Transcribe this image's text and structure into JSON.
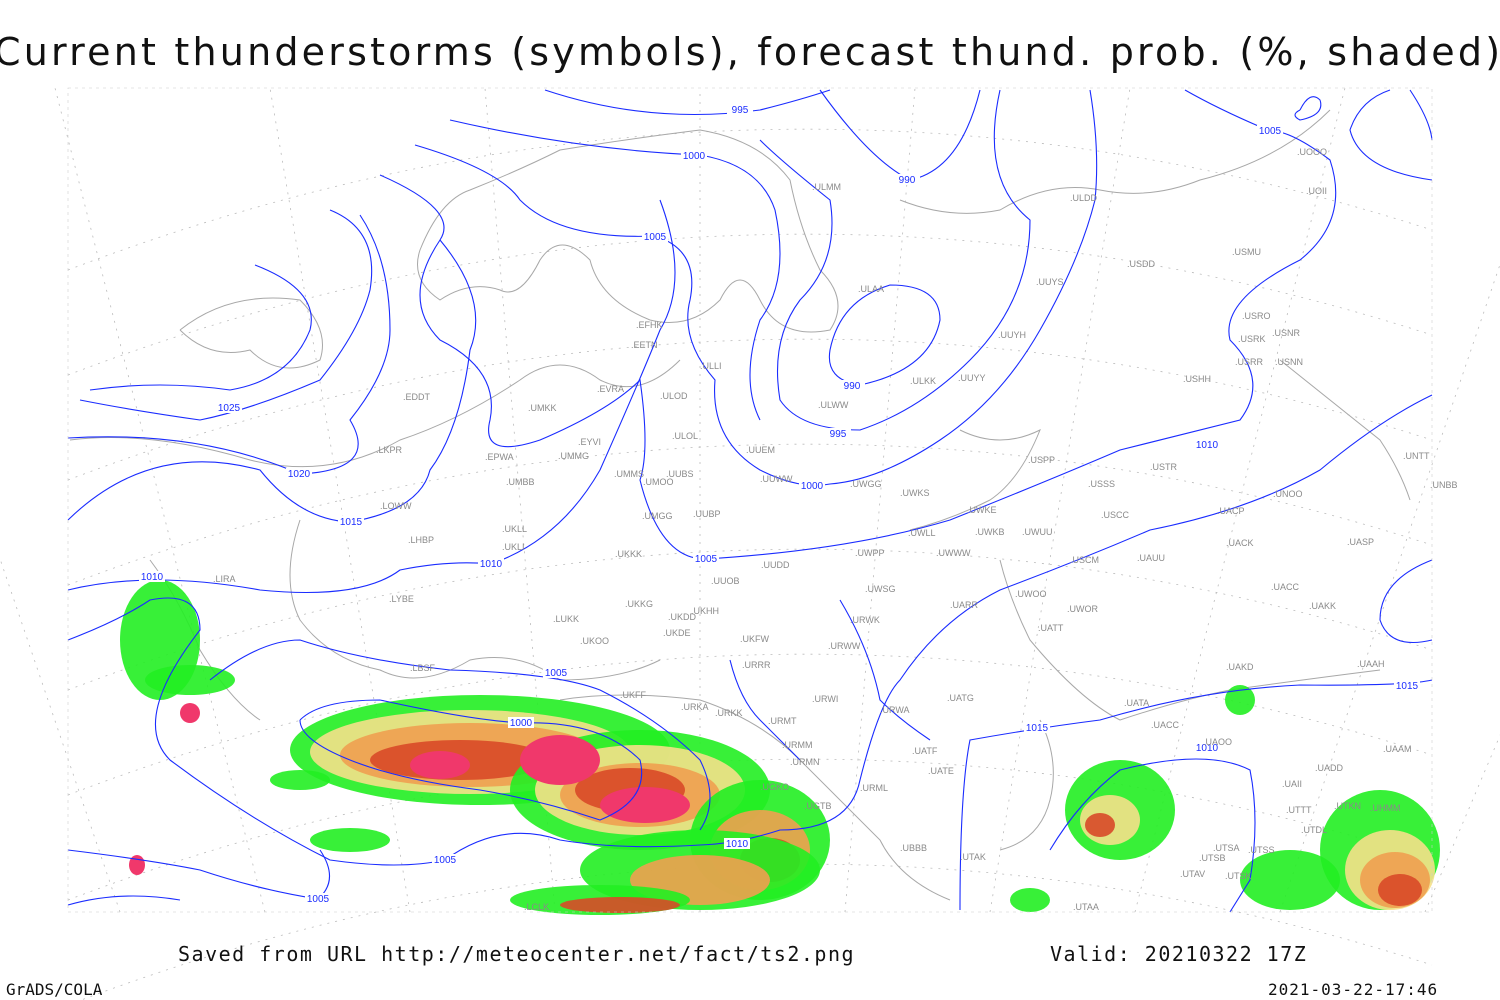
{
  "title": "Current thunderstorms (symbols), forecast thund. prob. (%, shaded)",
  "footer": {
    "saved": "Saved from URL http://meteocenter.net/fact/ts2.png",
    "valid": "Valid: 20210322 17Z",
    "software": "GrADS/COLA",
    "timestamp": "2021-03-22-17:46"
  },
  "colors": {
    "isobar": "#1a2cff",
    "stations": "#8a8a8a",
    "coast": "#a8a8a8",
    "prob_low": "#22ee22",
    "prob_mid": "#f5e08a",
    "prob_high": "#f0a050",
    "prob_max": "#d84a28",
    "thunderstorm_symbols": "#f0386b"
  },
  "isobar_labels": [
    "995",
    "1000",
    "990",
    "1005",
    "1005",
    "1025",
    "1020",
    "1015",
    "1010",
    "1010",
    "1005",
    "1000",
    "995",
    "990",
    "1010",
    "1005",
    "1000",
    "1015",
    "1010",
    "1015",
    "1010",
    "1005",
    "1005"
  ],
  "stations": [
    "ULMM",
    "ULDD",
    "USDD",
    "USMU",
    "UUYS",
    "ULAA",
    "USRO",
    "USRK",
    "USNR",
    "USRR",
    "USNN",
    "UUYH",
    "EFHK",
    "EETN",
    "ULLI",
    "ULKK",
    "UUYY",
    "USHH",
    "EVRA",
    "ULOD",
    "ULWW",
    "EDDT",
    "UMKK",
    "ULOL",
    "EYVI",
    "UUEM",
    "LKPR",
    "EPWA",
    "UMMG",
    "USPP",
    "USTR",
    "UMMS",
    "UMOO",
    "UUBS",
    "UUWW",
    "UWGG",
    "UWKS",
    "USSS",
    "UNTT",
    "UNBB",
    "UNOO",
    "UMBB",
    "LOWW",
    "UWKE",
    "UACP",
    "USCC",
    "UMGG",
    "UUBP",
    "UKLL",
    "UWLL",
    "UWKB",
    "UWUU",
    "UACK",
    "UASP",
    "LHBP",
    "UKLI",
    "UWPP",
    "UWWW",
    "USCM",
    "UAUU",
    "UKKK",
    "UUDD",
    "LIRA",
    "UUOB",
    "UWSG",
    "UACC",
    "UWOO",
    "UWOR",
    "UARR",
    "UAKK",
    "LYBE",
    "UKHH",
    "UKKG",
    "UKDD",
    "LUKK",
    "URWK",
    "UATT",
    "UKDE",
    "UKOO",
    "UKFW",
    "URWW",
    "URRR",
    "UAKD",
    "UAAH",
    "LBSF",
    "UKFF",
    "URWI",
    "UATG",
    "UATA",
    "URKA",
    "URKK",
    "URWA",
    "URMT",
    "UACC",
    "UAOO",
    "URMM",
    "UATE",
    "UATF",
    "URMN",
    "UGKO",
    "URML",
    "UAII",
    "UADD",
    "UAAM",
    "UGTB",
    "UTTT",
    "UTKN",
    "UBBB",
    "UTDL",
    "UTSA",
    "UTSS",
    "UTSB",
    "UTAK",
    "UTAV",
    "UTSK",
    "UTAA",
    "LCLK",
    "UHMM",
    "UOOO",
    "UOII"
  ]
}
